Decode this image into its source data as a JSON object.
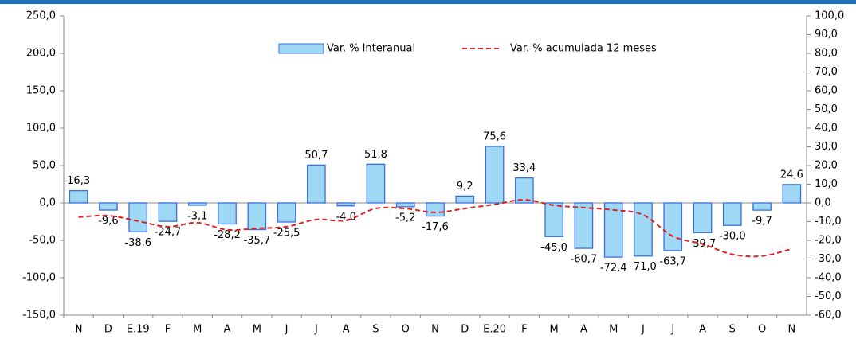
{
  "chart_data": {
    "type": "bar_line",
    "categories": [
      "N",
      "D",
      "E.19",
      "F",
      "M",
      "A",
      "M",
      "J",
      "J",
      "A",
      "S",
      "O",
      "N",
      "D",
      "E.20",
      "F",
      "M",
      "A",
      "M",
      "J",
      "J",
      "A",
      "S",
      "O",
      "N"
    ],
    "series": [
      {
        "name": "Var. % interanual",
        "type": "bar",
        "color": "#9ed8f5",
        "edge_color": "#3a6ee0",
        "values": [
          16.3,
          -9.6,
          -38.6,
          -24.7,
          -3.1,
          -28.2,
          -35.7,
          -25.5,
          50.7,
          -4.0,
          51.8,
          -5.2,
          -17.6,
          9.2,
          75.6,
          33.4,
          -45.0,
          -60.7,
          -72.4,
          -71.0,
          -63.7,
          -39.7,
          -30.0,
          -9.7,
          24.6
        ],
        "value_labels": [
          "16,3",
          "-9,6",
          "-38,6",
          "-24,7",
          "-3,1",
          "-28,2",
          "-35,7",
          "-25,5",
          "50,7",
          "-4,0",
          "51,8",
          "-5,2",
          "-17,6",
          "9,2",
          "75,6",
          "33,4",
          "-45,0",
          "-60,7",
          "-72,4",
          "-71,0",
          "-63,7",
          "-39,7",
          "-30,0",
          "-9,7",
          "24,6"
        ]
      },
      {
        "name": "Var. % acumulada 12 meses",
        "type": "line",
        "axis": "y2",
        "color": "#e02020",
        "values": [
          -7.6,
          -6.8,
          -9.7,
          -12.7,
          -10.6,
          -14.4,
          -13.6,
          -12.7,
          -8.9,
          -9.3,
          -3.0,
          -3.0,
          -5.1,
          -3.0,
          -0.8,
          1.7,
          -1.3,
          -2.5,
          -3.8,
          -6.4,
          -17.8,
          -22.0,
          -27.5,
          -28.4,
          -24.6
        ]
      }
    ],
    "ylim": [
      -150,
      250
    ],
    "yticks": [
      {
        "value": -150,
        "label": "-150,0"
      },
      {
        "value": -100,
        "label": "-100,0"
      },
      {
        "value": -50,
        "label": "-50,0"
      },
      {
        "value": 0,
        "label": "0,0"
      },
      {
        "value": 50,
        "label": "50,0"
      },
      {
        "value": 100,
        "label": "100,0"
      },
      {
        "value": 150,
        "label": "150,0"
      },
      {
        "value": 200,
        "label": "200,0"
      },
      {
        "value": 250,
        "label": "250,0"
      }
    ],
    "y2lim": [
      -60,
      100
    ],
    "y2ticks": [
      {
        "value": -60,
        "label": "-60,0"
      },
      {
        "value": -50,
        "label": "-50,0"
      },
      {
        "value": -40,
        "label": "-40,0"
      },
      {
        "value": -30,
        "label": "-30,0"
      },
      {
        "value": -20,
        "label": "-20,0"
      },
      {
        "value": -10,
        "label": "-10,0"
      },
      {
        "value": 0,
        "label": "0,0"
      },
      {
        "value": 10,
        "label": "10,0"
      },
      {
        "value": 20,
        "label": "20,0"
      },
      {
        "value": 30,
        "label": "30,0"
      },
      {
        "value": 40,
        "label": "40,0"
      },
      {
        "value": 50,
        "label": "50,0"
      },
      {
        "value": 60,
        "label": "60,0"
      },
      {
        "value": 70,
        "label": "70,0"
      },
      {
        "value": 80,
        "label": "80,0"
      },
      {
        "value": 90,
        "label": "90,0"
      },
      {
        "value": 100,
        "label": "100,0"
      }
    ],
    "legend": "top"
  }
}
